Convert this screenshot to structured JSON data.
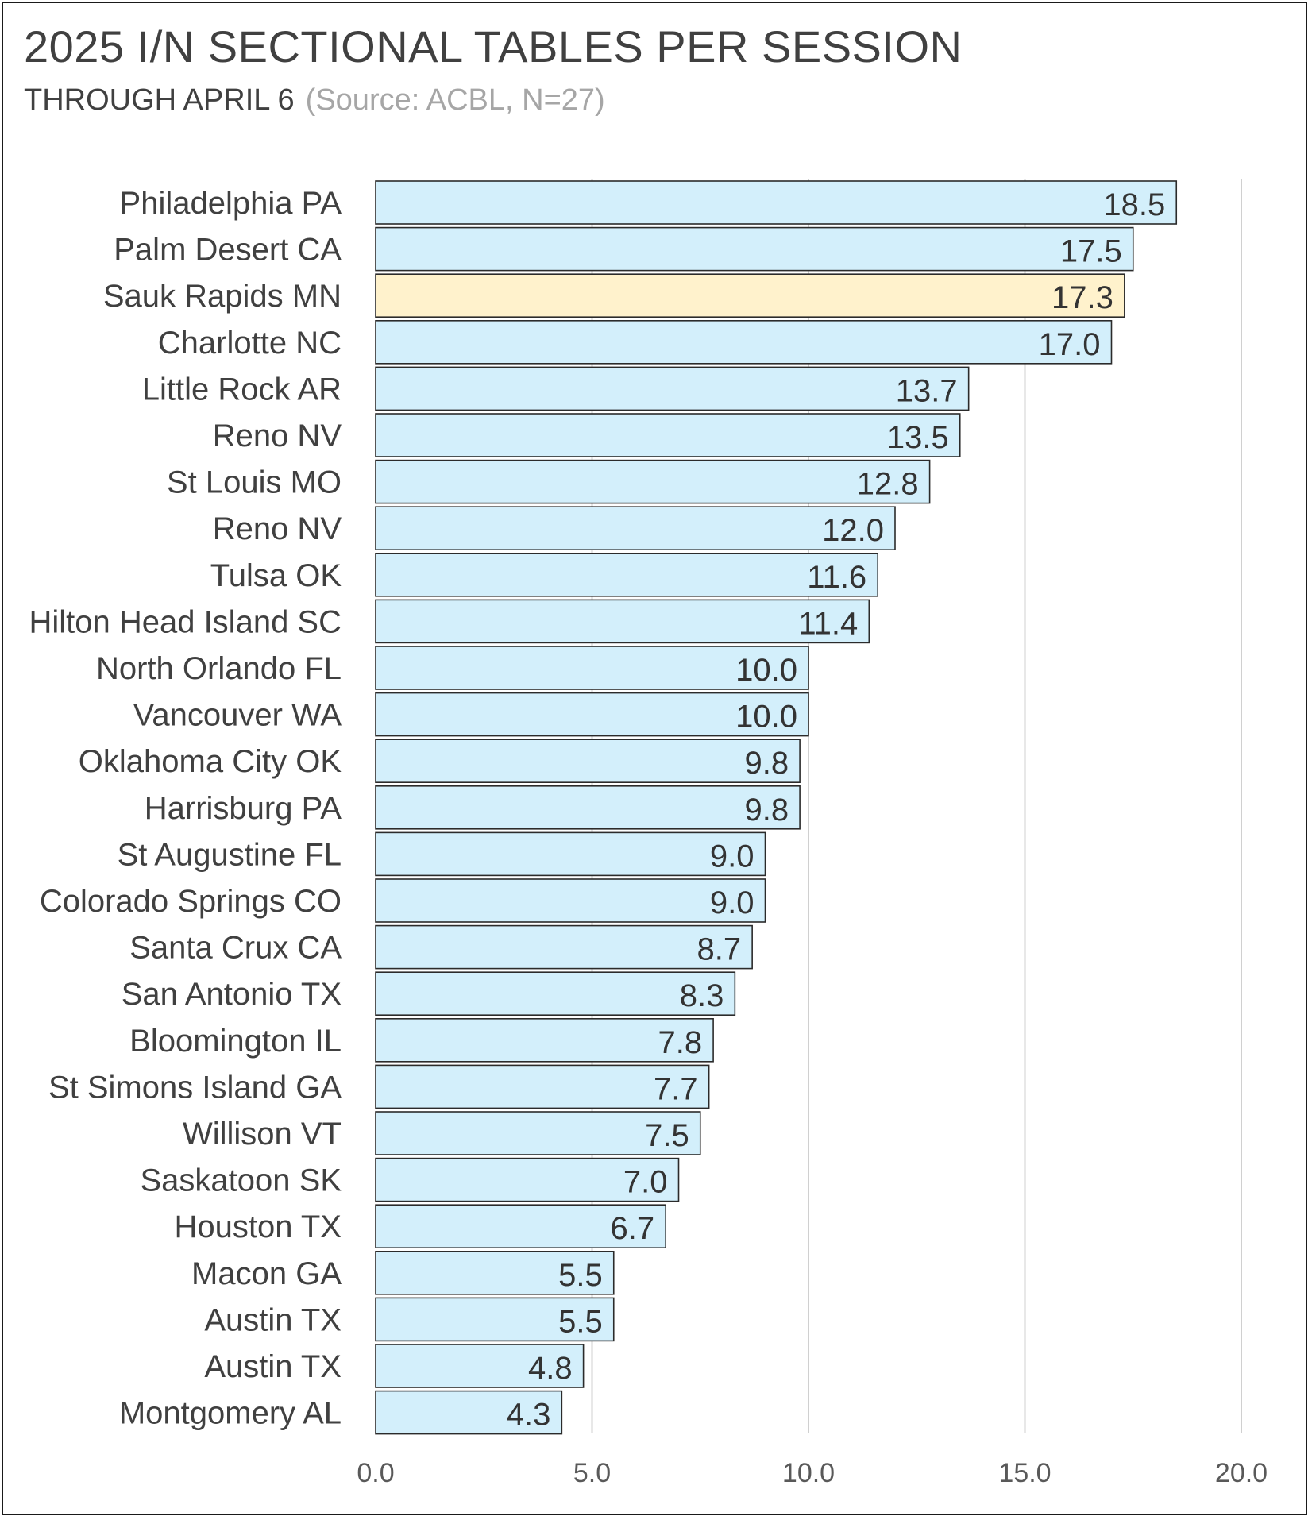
{
  "chart_data": {
    "type": "bar",
    "orientation": "horizontal",
    "title": "2025 I/N SECTIONAL TABLES PER SESSION",
    "subtitle": "THROUGH APRIL 6",
    "source_note": "(Source: ACBL, N=27)",
    "categories": [
      "Philadelphia PA",
      "Palm Desert CA",
      "Sauk Rapids MN",
      "Charlotte NC",
      "Little Rock AR",
      "Reno NV",
      "St Louis MO",
      "Reno NV",
      "Tulsa OK",
      "Hilton Head Island SC",
      "North Orlando FL",
      "Vancouver WA",
      "Oklahoma City OK",
      "Harrisburg PA",
      "St Augustine FL",
      "Colorado Springs CO",
      "Santa Crux CA",
      "San Antonio TX",
      "Bloomington IL",
      "St Simons Island GA",
      "Willison VT",
      "Saskatoon SK",
      "Houston TX",
      "Macon GA",
      "Austin TX",
      "Austin TX",
      "Montgomery AL"
    ],
    "values": [
      18.5,
      17.5,
      17.3,
      17.0,
      13.7,
      13.5,
      12.8,
      12.0,
      11.6,
      11.4,
      10.0,
      10.0,
      9.8,
      9.8,
      9.0,
      9.0,
      8.7,
      8.3,
      7.8,
      7.7,
      7.5,
      7.0,
      6.7,
      5.5,
      5.5,
      4.8,
      4.3
    ],
    "value_labels": [
      "18.5",
      "17.5",
      "17.3",
      "17.0",
      "13.7",
      "13.5",
      "12.8",
      "12.0",
      "11.6",
      "11.4",
      "10.0",
      "10.0",
      "9.8",
      "9.8",
      "9.0",
      "9.0",
      "8.7",
      "8.3",
      "7.8",
      "7.7",
      "7.5",
      "7.0",
      "6.7",
      "5.5",
      "5.5",
      "4.8",
      "4.3"
    ],
    "highlighted_category": "Sauk Rapids MN",
    "highlight_index": 2,
    "xlim": [
      0,
      20
    ],
    "xticks": [
      0,
      5,
      10,
      15,
      20
    ],
    "xtick_labels": [
      "0.0",
      "5.0",
      "10.0",
      "15.0",
      "20.0"
    ],
    "xlabel": "",
    "ylabel": "",
    "grid": "vertical",
    "legend": "none",
    "colors": {
      "bar_fill": "#d3effb",
      "bar_highlight_fill": "#fff2cc",
      "bar_stroke": "#2b2b2b",
      "gridline": "#d0d0d0",
      "title": "#404040",
      "source": "#a6a6a6"
    }
  }
}
